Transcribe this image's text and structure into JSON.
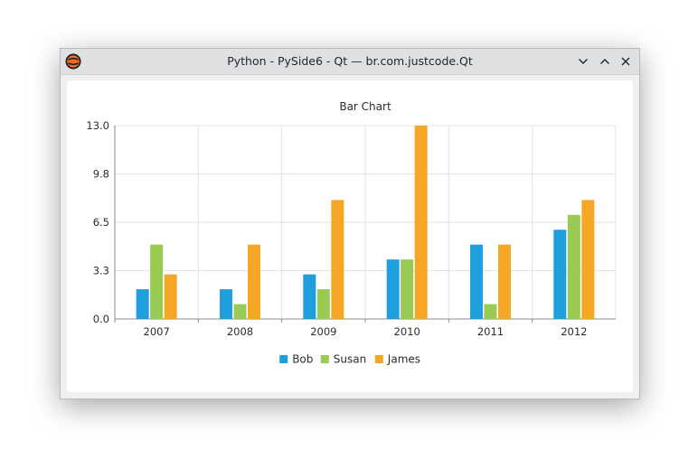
{
  "window": {
    "title": "Python - PySide6 - Qt — br.com.justcode.Qt",
    "buttons": [
      "minimize",
      "maximize",
      "close"
    ]
  },
  "icons": {
    "app": "app-icon",
    "minimize": "chevron-down-icon",
    "maximize": "chevron-up-icon",
    "close": "close-icon",
    "legend_marker": "square"
  },
  "colors": {
    "Bob": "#209fdf",
    "Susan": "#99ca53",
    "James": "#f6a625",
    "grid": "#e3e3e3",
    "axis": "#8c8c8c"
  },
  "chart_data": {
    "type": "bar",
    "title": "Bar Chart",
    "xlabel": "",
    "ylabel": "",
    "categories": [
      "2007",
      "2008",
      "2009",
      "2010",
      "2011",
      "2012"
    ],
    "series": [
      {
        "name": "Bob",
        "values": [
          2,
          2,
          3,
          4,
          5,
          6
        ]
      },
      {
        "name": "Susan",
        "values": [
          5,
          1,
          2,
          4,
          1,
          7
        ]
      },
      {
        "name": "James",
        "values": [
          3,
          5,
          8,
          13,
          5,
          8
        ]
      }
    ],
    "ylim": [
      0,
      13
    ],
    "yticks": [
      "0.0",
      "3.3",
      "6.5",
      "9.8",
      "13.0"
    ],
    "grid": true,
    "legend": "bottom"
  }
}
